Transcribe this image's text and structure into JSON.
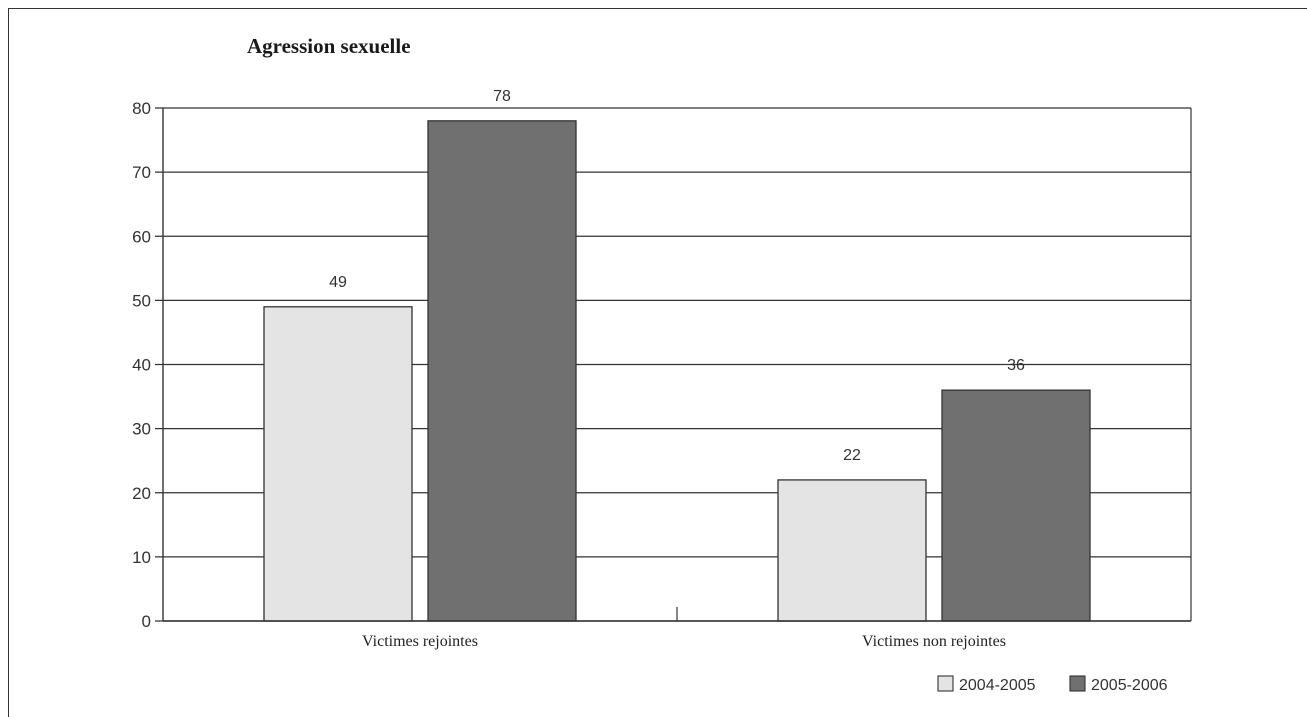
{
  "chart_data": {
    "type": "bar",
    "title": "Agression sexuelle",
    "categories": [
      "Victimes rejointes",
      "Victimes non rejointes"
    ],
    "series": [
      {
        "name": "2004-2005",
        "values": [
          49,
          22
        ],
        "color": "#e4e4e4"
      },
      {
        "name": "2005-2006",
        "values": [
          78,
          36
        ],
        "color": "#707070"
      }
    ],
    "data_labels": [
      [
        "49",
        "22"
      ],
      [
        "78",
        "36"
      ]
    ],
    "ylim": [
      0,
      80
    ],
    "yticks": [
      "0",
      "10",
      "20",
      "30",
      "40",
      "50",
      "60",
      "70",
      "80"
    ],
    "grid": true,
    "legend_position": "bottom-right",
    "xlabel": "",
    "ylabel": ""
  }
}
